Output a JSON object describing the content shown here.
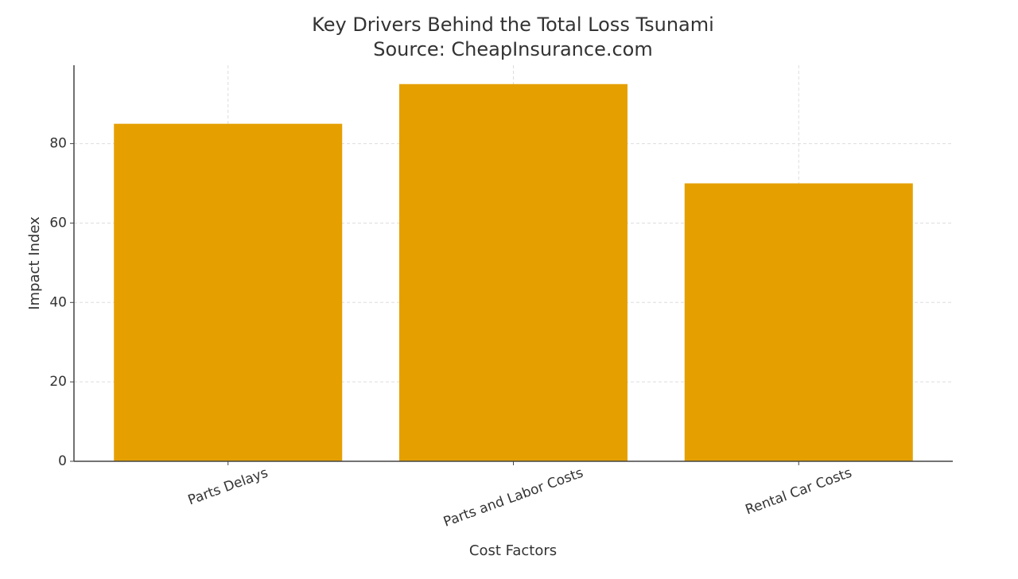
{
  "chart_data": {
    "type": "bar",
    "title": "Key Drivers Behind the Total Loss Tsunami",
    "subtitle": "Source: CheapInsurance.com",
    "x_label": "Cost Factors",
    "y_label": "Impact Index",
    "categories": [
      "Parts Delays",
      "Parts and Labor Costs",
      "Rental Car Costs"
    ],
    "values": [
      85,
      95,
      70
    ],
    "color": "#e5a000",
    "ylim": [
      0,
      99.75
    ],
    "yticks": [
      0,
      20,
      40,
      60,
      80
    ],
    "grid": true
  }
}
